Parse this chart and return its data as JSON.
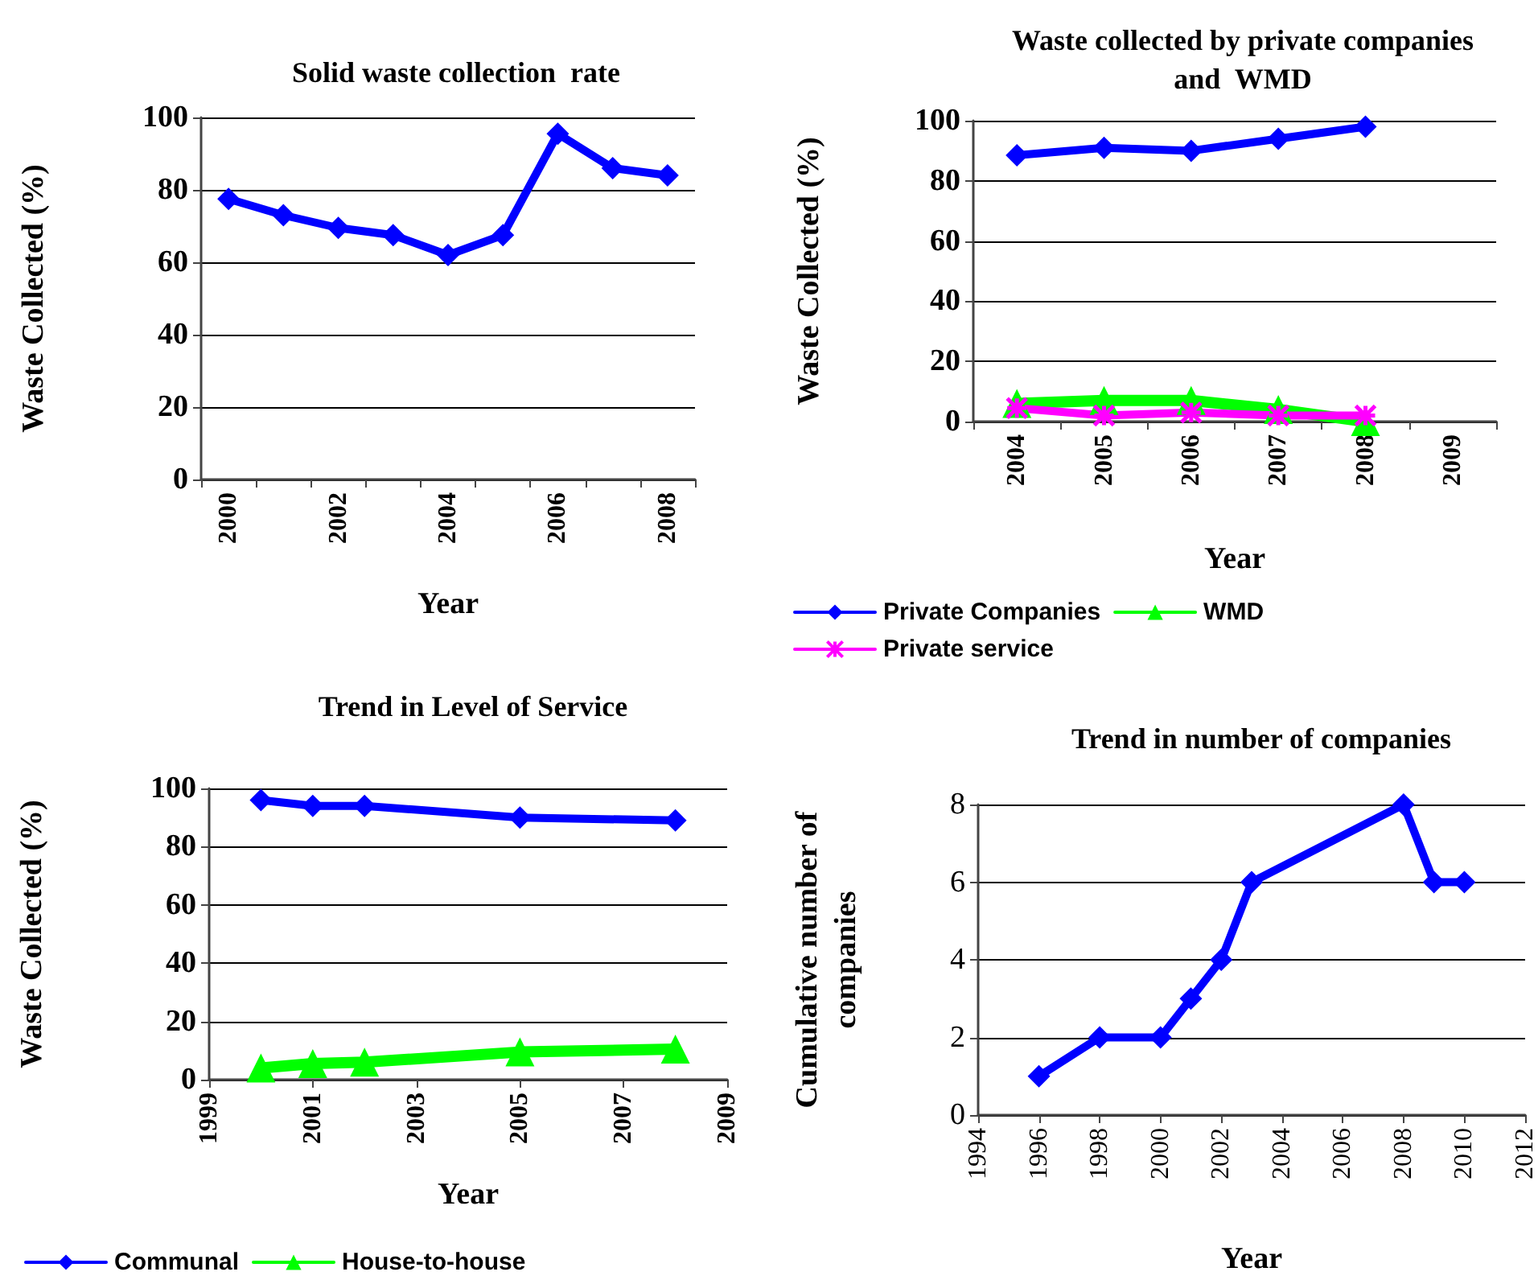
{
  "chart_data": [
    {
      "type": "line",
      "title": "Solid waste collection  rate",
      "xlabel": "Year",
      "ylabel": "Waste Collected (%)",
      "categories": [
        "2000",
        null,
        "2002",
        null,
        "2004",
        null,
        "2006",
        null,
        "2008"
      ],
      "series": [
        {
          "color": "#0000ff",
          "marker": "diamond",
          "values": [
            77.5,
            73,
            69.5,
            67.5,
            62,
            67.5,
            95.5,
            86,
            84
          ]
        }
      ],
      "ylim": [
        0,
        100
      ],
      "yticks": [
        0,
        20,
        40,
        60,
        80,
        100
      ],
      "grid": "y"
    },
    {
      "type": "line",
      "title": "Waste collected by private companies\nand  WMD",
      "xlabel": "Year",
      "ylabel": "Waste Collected (%)",
      "categories": [
        "2004",
        "2005",
        "2006",
        "2007",
        "2008",
        "2009"
      ],
      "series": [
        {
          "name": "Private Companies",
          "color": "#0000ff",
          "marker": "diamond",
          "values": [
            88.5,
            91,
            90,
            94,
            98,
            null
          ]
        },
        {
          "name": "WMD",
          "color": "#00ff00",
          "marker": "triangle",
          "values": [
            6,
            7,
            7,
            4,
            0,
            null
          ]
        },
        {
          "name": "Private service",
          "color": "#ff00ff",
          "marker": "cross",
          "values": [
            4.5,
            2,
            3,
            2,
            2,
            null
          ]
        }
      ],
      "ylim": [
        0,
        100
      ],
      "yticks": [
        0,
        20,
        40,
        60,
        80,
        100
      ],
      "grid": "y",
      "legend": "bottom"
    },
    {
      "type": "line",
      "title": "Trend in Level of Service",
      "xlabel": "Year",
      "ylabel": "Waste Collected (%)",
      "x": [
        2000,
        2001,
        2002,
        2005,
        2008
      ],
      "series": [
        {
          "name": "Communal",
          "color": "#0000ff",
          "marker": "diamond",
          "values": [
            96,
            94,
            94,
            90,
            89
          ]
        },
        {
          "name": "House-to-house",
          "color": "#00ff00",
          "marker": "triangle",
          "values": [
            4,
            5.5,
            6,
            9.5,
            10.5
          ]
        }
      ],
      "xlim": [
        1999,
        2009
      ],
      "xticks": [
        1999,
        2001,
        2003,
        2005,
        2007,
        2009
      ],
      "ylim": [
        0,
        100
      ],
      "yticks": [
        0,
        20,
        40,
        60,
        80,
        100
      ],
      "grid": "y",
      "legend": "bottom"
    },
    {
      "type": "line",
      "title": "Trend in number of companies",
      "xlabel": "Year",
      "ylabel": "Cumulative number of\ncompanies",
      "x": [
        1996,
        1998,
        2000,
        2001,
        2002,
        2003,
        2008,
        2009,
        2010
      ],
      "series": [
        {
          "color": "#0000ff",
          "marker": "diamond",
          "values": [
            1,
            2,
            2,
            3,
            4,
            6,
            8,
            6,
            6
          ]
        }
      ],
      "xlim": [
        1994,
        2012
      ],
      "xticks": [
        1994,
        1996,
        1998,
        2000,
        2002,
        2004,
        2006,
        2008,
        2010,
        2012
      ],
      "ylim": [
        0,
        8
      ],
      "yticks": [
        0,
        2,
        4,
        6,
        8
      ],
      "grid": "y"
    }
  ]
}
